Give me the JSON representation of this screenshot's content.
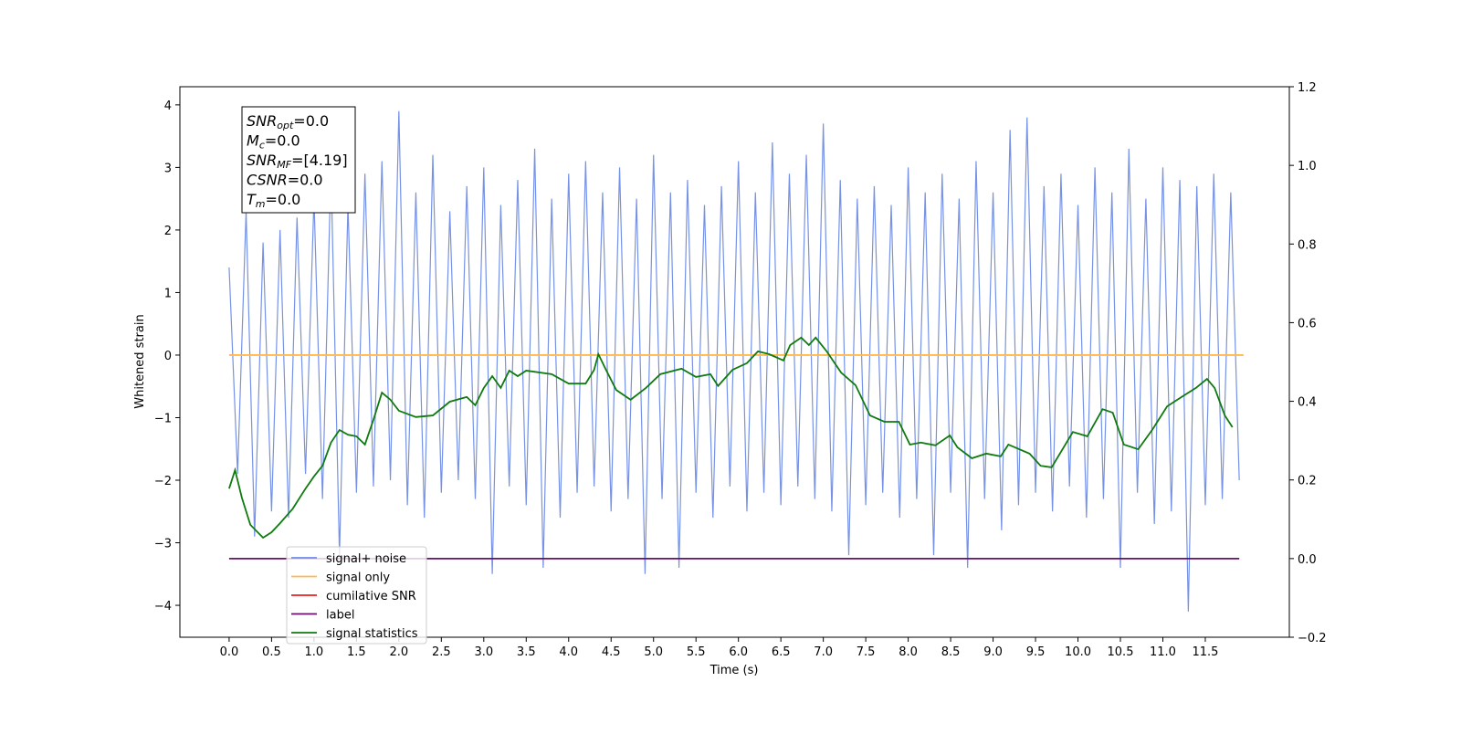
{
  "chart_data": {
    "type": "line",
    "xlabel": "Time (s)",
    "ylabel": "Whitened strain",
    "xlim": [
      -0.58,
      12.49
    ],
    "ylim": [
      -4.51,
      4.29
    ],
    "y2lim": [
      -0.2,
      1.2
    ],
    "xticks": [
      {
        "value": 0,
        "label": "0.0"
      },
      0.5,
      {
        "value": 1,
        "label": "1.0"
      },
      1.5,
      {
        "value": 2,
        "label": "2.0"
      },
      2.5,
      {
        "value": 3,
        "label": "3.0"
      },
      3.5,
      {
        "value": 4,
        "label": "4.0"
      },
      4.5,
      {
        "value": 5,
        "label": "5.0"
      },
      5.5,
      {
        "value": 6,
        "label": "6.0"
      },
      6.5,
      {
        "value": 7,
        "label": "7.0"
      },
      7.5,
      {
        "value": 8,
        "label": "8.0"
      },
      8.5,
      {
        "value": 9,
        "label": "9.0"
      },
      9.5,
      {
        "value": 10,
        "label": "10.0"
      },
      10.5,
      {
        "value": 11,
        "label": "11.0"
      },
      11.5
    ],
    "yticks": [
      -4,
      -3,
      -2,
      -1,
      0,
      1,
      2,
      3,
      4
    ],
    "y2ticks": [
      {
        "value": -0.2,
        "label": "−0.2"
      },
      {
        "value": 0,
        "label": "0.0"
      },
      0.2,
      0.4,
      0.6,
      0.8,
      {
        "value": 1,
        "label": "1.0"
      },
      1.2
    ],
    "yticklabels": [
      "−4",
      "−3",
      "−2",
      "−1",
      "0",
      "1",
      "2",
      "3",
      "4"
    ],
    "annotation": [
      {
        "name": "SNR",
        "sub": "opt",
        "text": "=0.0"
      },
      {
        "name": "M",
        "sub": "c",
        "text": "=0.0"
      },
      {
        "name": "SNR",
        "sub": "MF",
        "text": "=[4.19]"
      },
      {
        "name": "CSNR",
        "text": "=0.0"
      },
      {
        "name": "T",
        "sub": "m",
        "text": "=0.0"
      }
    ],
    "series": [
      {
        "name": "signal+ noise",
        "color": "#6f8ce6",
        "x": [
          0.0,
          0.1,
          0.2,
          0.3,
          0.4,
          0.5,
          0.6,
          0.7,
          0.8,
          0.9,
          1.0,
          1.1,
          1.2,
          1.3,
          1.4,
          1.5,
          1.6,
          1.7,
          1.8,
          1.9,
          2.0,
          2.1,
          2.2,
          2.3,
          2.4,
          2.5,
          2.6,
          2.7,
          2.8,
          2.9,
          3.0,
          3.1,
          3.2,
          3.3,
          3.4,
          3.5,
          3.6,
          3.7,
          3.8,
          3.9,
          4.0,
          4.1,
          4.2,
          4.3,
          4.4,
          4.5,
          4.6,
          4.7,
          4.8,
          4.9,
          5.0,
          5.1,
          5.2,
          5.3,
          5.4,
          5.5,
          5.6,
          5.7,
          5.8,
          5.9,
          6.0,
          6.1,
          6.2,
          6.3,
          6.4,
          6.5,
          6.6,
          6.7,
          6.8,
          6.9,
          7.0,
          7.1,
          7.2,
          7.3,
          7.4,
          7.5,
          7.6,
          7.7,
          7.8,
          7.9,
          8.0,
          8.1,
          8.2,
          8.3,
          8.4,
          8.5,
          8.6,
          8.7,
          8.8,
          8.9,
          9.0,
          9.1,
          9.2,
          9.3,
          9.4,
          9.5,
          9.6,
          9.7,
          9.8,
          9.9,
          10.0,
          10.1,
          10.2,
          10.3,
          10.4,
          10.5,
          10.6,
          10.7,
          10.8,
          10.9,
          11.0,
          11.1,
          11.2,
          11.3,
          11.4,
          11.5,
          11.6,
          11.7,
          11.8,
          11.9
        ],
        "values": [
          1.4,
          -1.9,
          2.3,
          -2.9,
          1.8,
          -2.5,
          2.0,
          -2.6,
          2.2,
          -1.9,
          2.5,
          -2.3,
          3.0,
          -3.2,
          2.4,
          -2.2,
          2.9,
          -2.1,
          3.1,
          -2.0,
          3.9,
          -2.4,
          2.6,
          -2.6,
          3.2,
          -2.2,
          2.3,
          -2.0,
          2.7,
          -2.3,
          3.0,
          -3.5,
          2.4,
          -2.1,
          2.8,
          -2.4,
          3.3,
          -3.4,
          2.5,
          -2.6,
          2.9,
          -2.2,
          3.1,
          -2.1,
          2.6,
          -2.5,
          3.0,
          -2.3,
          2.5,
          -3.5,
          3.2,
          -2.3,
          2.6,
          -3.4,
          2.8,
          -2.2,
          2.4,
          -2.6,
          2.7,
          -2.1,
          3.1,
          -2.5,
          2.6,
          -2.2,
          3.4,
          -2.4,
          2.9,
          -2.1,
          3.2,
          -2.3,
          3.7,
          -2.5,
          2.8,
          -3.2,
          2.5,
          -2.4,
          2.7,
          -2.2,
          2.4,
          -2.6,
          3.0,
          -2.3,
          2.6,
          -3.2,
          2.9,
          -2.2,
          2.5,
          -3.4,
          3.1,
          -2.3,
          2.6,
          -2.8,
          3.6,
          -2.4,
          3.8,
          -2.2,
          2.7,
          -2.5,
          2.9,
          -2.1,
          2.4,
          -2.6,
          3.0,
          -2.3,
          2.6,
          -3.4,
          3.3,
          -2.2,
          2.5,
          -2.7,
          3.0,
          -2.5,
          2.8,
          -4.1,
          2.7,
          -2.4,
          2.9,
          -2.3,
          2.6,
          -2.0
        ]
      },
      {
        "name": "signal only",
        "color": "#ffb84d",
        "x": [
          0,
          11.95
        ],
        "values": [
          0,
          0
        ]
      },
      {
        "name": "cumilative SNR",
        "color": "#e8201c"
      },
      {
        "name": "label",
        "color": "#6b0f6b",
        "axis": "y2",
        "x": [
          0,
          11.9
        ],
        "values": [
          0,
          0
        ]
      },
      {
        "name": "signal statistics",
        "color": "#0f7a0f",
        "axis": "y2",
        "x": [
          0.0,
          0.07,
          0.15,
          0.25,
          0.4,
          0.5,
          0.6,
          0.75,
          0.9,
          1.0,
          1.1,
          1.2,
          1.3,
          1.4,
          1.5,
          1.6,
          1.7,
          1.8,
          1.9,
          2.0,
          2.2,
          2.4,
          2.6,
          2.8,
          2.9,
          3.0,
          3.1,
          3.2,
          3.3,
          3.4,
          3.5,
          3.8,
          4.0,
          4.2,
          4.3,
          4.35,
          4.44,
          4.56,
          4.73,
          4.91,
          5.08,
          5.33,
          5.5,
          5.67,
          5.76,
          5.93,
          6.1,
          6.23,
          6.36,
          6.53,
          6.61,
          6.74,
          6.83,
          6.91,
          7.04,
          7.21,
          7.38,
          7.55,
          7.72,
          7.89,
          8.02,
          8.15,
          8.32,
          8.49,
          8.58,
          8.75,
          8.92,
          9.09,
          9.18,
          9.43,
          9.56,
          9.69,
          9.94,
          10.11,
          10.29,
          10.41,
          10.54,
          10.71,
          10.88,
          11.05,
          11.22,
          11.39,
          11.52,
          11.61,
          11.73,
          11.82
        ],
        "values": [
          0.178,
          0.225,
          0.155,
          0.086,
          0.053,
          0.067,
          0.09,
          0.127,
          0.178,
          0.209,
          0.236,
          0.295,
          0.327,
          0.315,
          0.311,
          0.29,
          0.353,
          0.422,
          0.404,
          0.376,
          0.36,
          0.364,
          0.399,
          0.411,
          0.39,
          0.434,
          0.464,
          0.434,
          0.478,
          0.464,
          0.478,
          0.469,
          0.445,
          0.445,
          0.48,
          0.52,
          0.48,
          0.429,
          0.404,
          0.434,
          0.469,
          0.483,
          0.462,
          0.469,
          0.439,
          0.48,
          0.497,
          0.527,
          0.52,
          0.504,
          0.543,
          0.562,
          0.543,
          0.562,
          0.527,
          0.473,
          0.441,
          0.364,
          0.348,
          0.348,
          0.29,
          0.295,
          0.288,
          0.313,
          0.283,
          0.255,
          0.267,
          0.26,
          0.29,
          0.267,
          0.236,
          0.232,
          0.322,
          0.311,
          0.38,
          0.371,
          0.29,
          0.278,
          0.329,
          0.387,
          0.411,
          0.434,
          0.457,
          0.434,
          0.364,
          0.334
        ]
      }
    ]
  }
}
